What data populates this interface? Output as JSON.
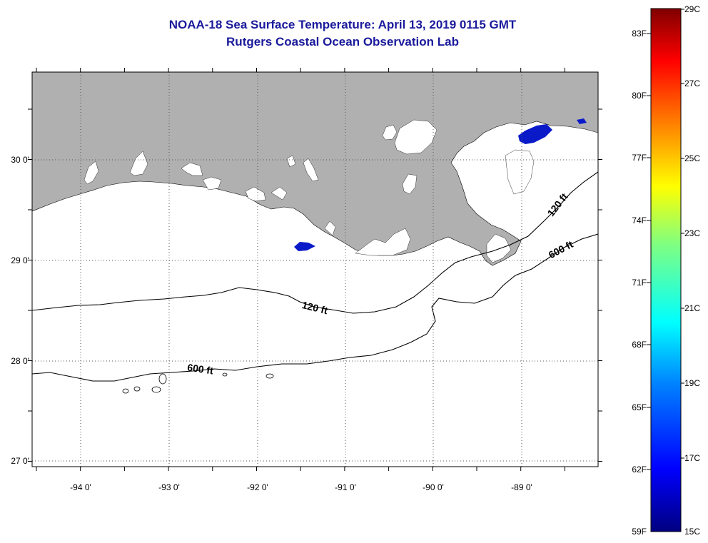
{
  "header": {
    "title": "NOAA-18 Sea Surface Temperature:  April 13, 2019 0115 GMT",
    "subtitle": "Rutgers Coastal Ocean Observation Lab"
  },
  "map": {
    "lon_labels": [
      "-94 0'",
      "-93 0'",
      "-92 0'",
      "-91 0'",
      "-90 0'",
      "-89 0'"
    ],
    "lat_labels": [
      "30 0'",
      "29 0'",
      "28 0'",
      "27 0'"
    ],
    "contours": [
      {
        "label": "120 ft"
      },
      {
        "label": "600 ft"
      },
      {
        "label": "120 ft"
      },
      {
        "label": "600 ft"
      }
    ],
    "colors": {
      "land": "#b0b0b0",
      "cloud": "#ffffff",
      "ocean": "#ffffff",
      "cold_patch": "#0a1ac8"
    }
  },
  "colorbar": {
    "fahrenheit": [
      "83F",
      "80F",
      "77F",
      "74F",
      "71F",
      "68F",
      "65F",
      "62F",
      "59F"
    ],
    "celsius": [
      "29C",
      "27C",
      "25C",
      "23C",
      "21C",
      "19C",
      "17C",
      "15C"
    ]
  }
}
